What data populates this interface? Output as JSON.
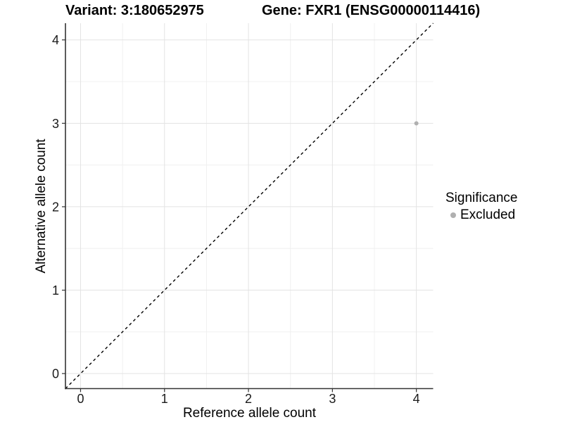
{
  "titles": {
    "variant": "Variant: 3:180652975",
    "gene": "Gene: FXR1 (ENSG00000114416)"
  },
  "chart_data": {
    "type": "scatter",
    "title_left": "Variant: 3:180652975",
    "title_right": "Gene: FXR1 (ENSG00000114416)",
    "xlabel": "Reference allele count",
    "ylabel": "Alternative allele count",
    "xlim": [
      -0.18,
      4.2
    ],
    "ylim": [
      -0.18,
      4.2
    ],
    "x_ticks": [
      0,
      1,
      2,
      3,
      4
    ],
    "y_ticks": [
      0,
      1,
      2,
      3,
      4
    ],
    "x_minor_ticks": [
      0.5,
      1.5,
      2.5,
      3.5
    ],
    "y_minor_ticks": [
      0.5,
      1.5,
      2.5,
      3.5
    ],
    "grid": "major+minor",
    "identity_line": {
      "style": "dashed",
      "from": -0.18,
      "to": 4.2
    },
    "series": [
      {
        "name": "Excluded",
        "color": "#b0b0b0",
        "points": [
          {
            "x": 4,
            "y": 3
          }
        ]
      }
    ],
    "legend": {
      "title": "Significance",
      "position": "right",
      "items": [
        {
          "label": "Excluded",
          "color": "#b0b0b0"
        }
      ]
    }
  },
  "colors": {
    "background": "#ffffff",
    "grid_major": "#e3e3e3",
    "grid_minor": "#f0f0f0",
    "axis": "#333333",
    "identity_line": "#000000",
    "excluded_point": "#b0b0b0",
    "text": "#000000"
  }
}
